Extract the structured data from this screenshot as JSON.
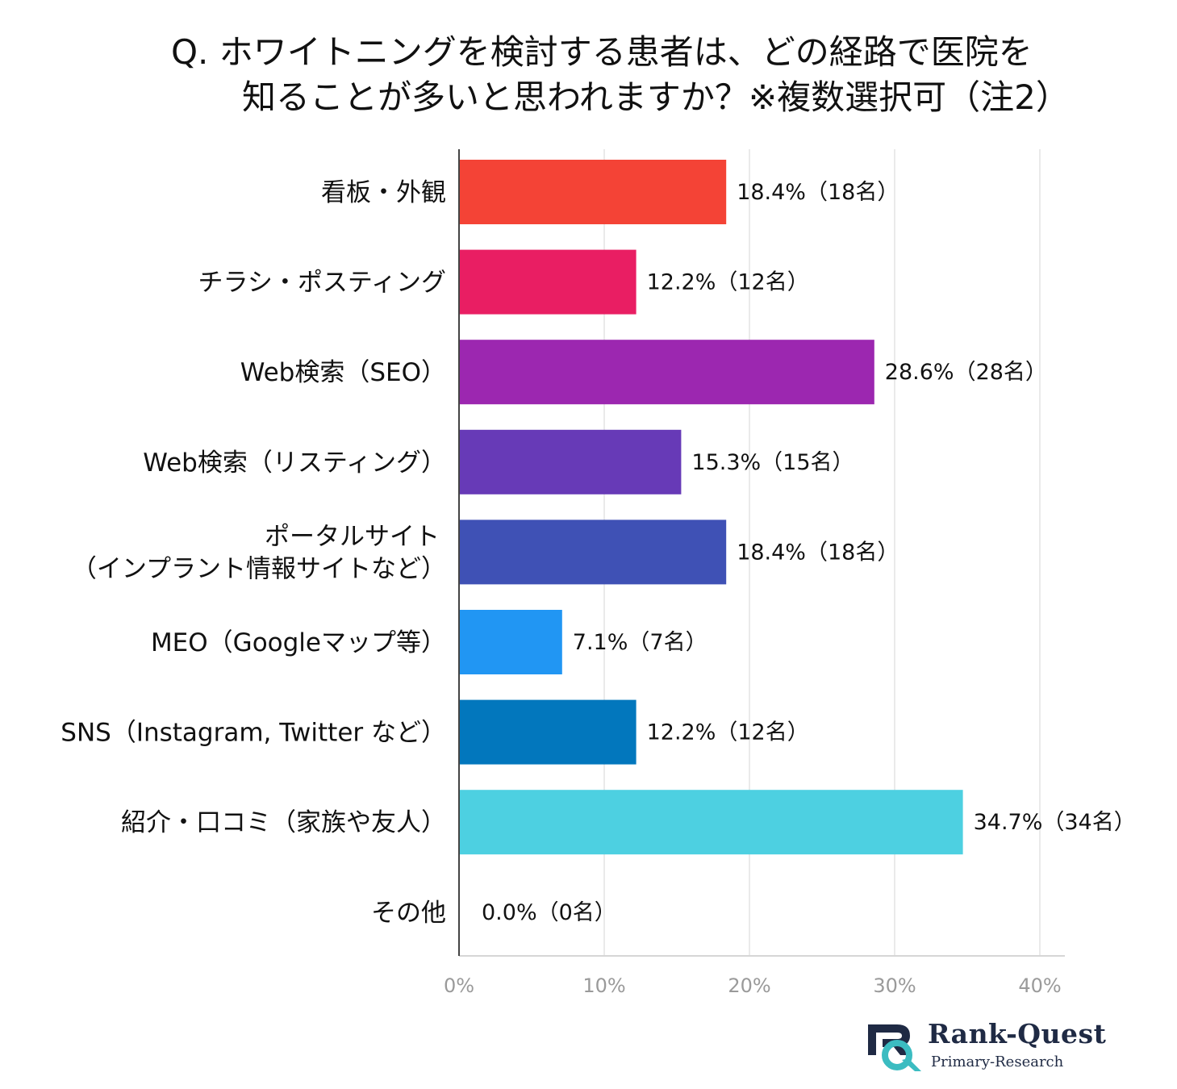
{
  "title": {
    "line1": "Q.  ホワイトニングを検討する患者は、どの経路で医院を",
    "line2": "知ることが多いと思われますか？※複数選択可（注2）"
  },
  "chart_data": {
    "type": "bar",
    "orientation": "horizontal",
    "categories": [
      [
        "看板・外観"
      ],
      [
        "チラシ・ポスティング"
      ],
      [
        "Web検索（SEO）"
      ],
      [
        "Web検索（リスティング）"
      ],
      [
        "ポータルサイト",
        "（インプラント情報サイトなど）"
      ],
      [
        "MEO（Googleマップ等）"
      ],
      [
        "SNS（Instagram, Twitter など）"
      ],
      [
        "紹介・口コミ（家族や友人）"
      ],
      [
        "その他"
      ]
    ],
    "values": [
      18.4,
      12.2,
      28.6,
      15.3,
      18.4,
      7.1,
      12.2,
      34.7,
      0.0
    ],
    "data_labels": [
      "18.4%（18名）",
      "12.2%（12名）",
      "28.6%（28名）",
      "15.3%（15名）",
      "18.4%（18名）",
      "7.1%（7名）",
      "12.2%（12名）",
      "34.7%（34名）",
      "0.0%（0名）"
    ],
    "colors": [
      "#f44336",
      "#e91e63",
      "#9c27b0",
      "#673ab7",
      "#3f51b5",
      "#2196f3",
      "#0277bd",
      "#4dd0e1",
      "#9e9e9e"
    ],
    "x_ticks": [
      "0%",
      "10%",
      "20%",
      "30%",
      "40%"
    ],
    "xlim": [
      0,
      40
    ],
    "grid": true
  },
  "logo": {
    "name": "Rank-Quest",
    "subtitle": "Primary-Research",
    "colors": {
      "navy": "#1f2a44",
      "teal": "#3bbcc1"
    }
  }
}
